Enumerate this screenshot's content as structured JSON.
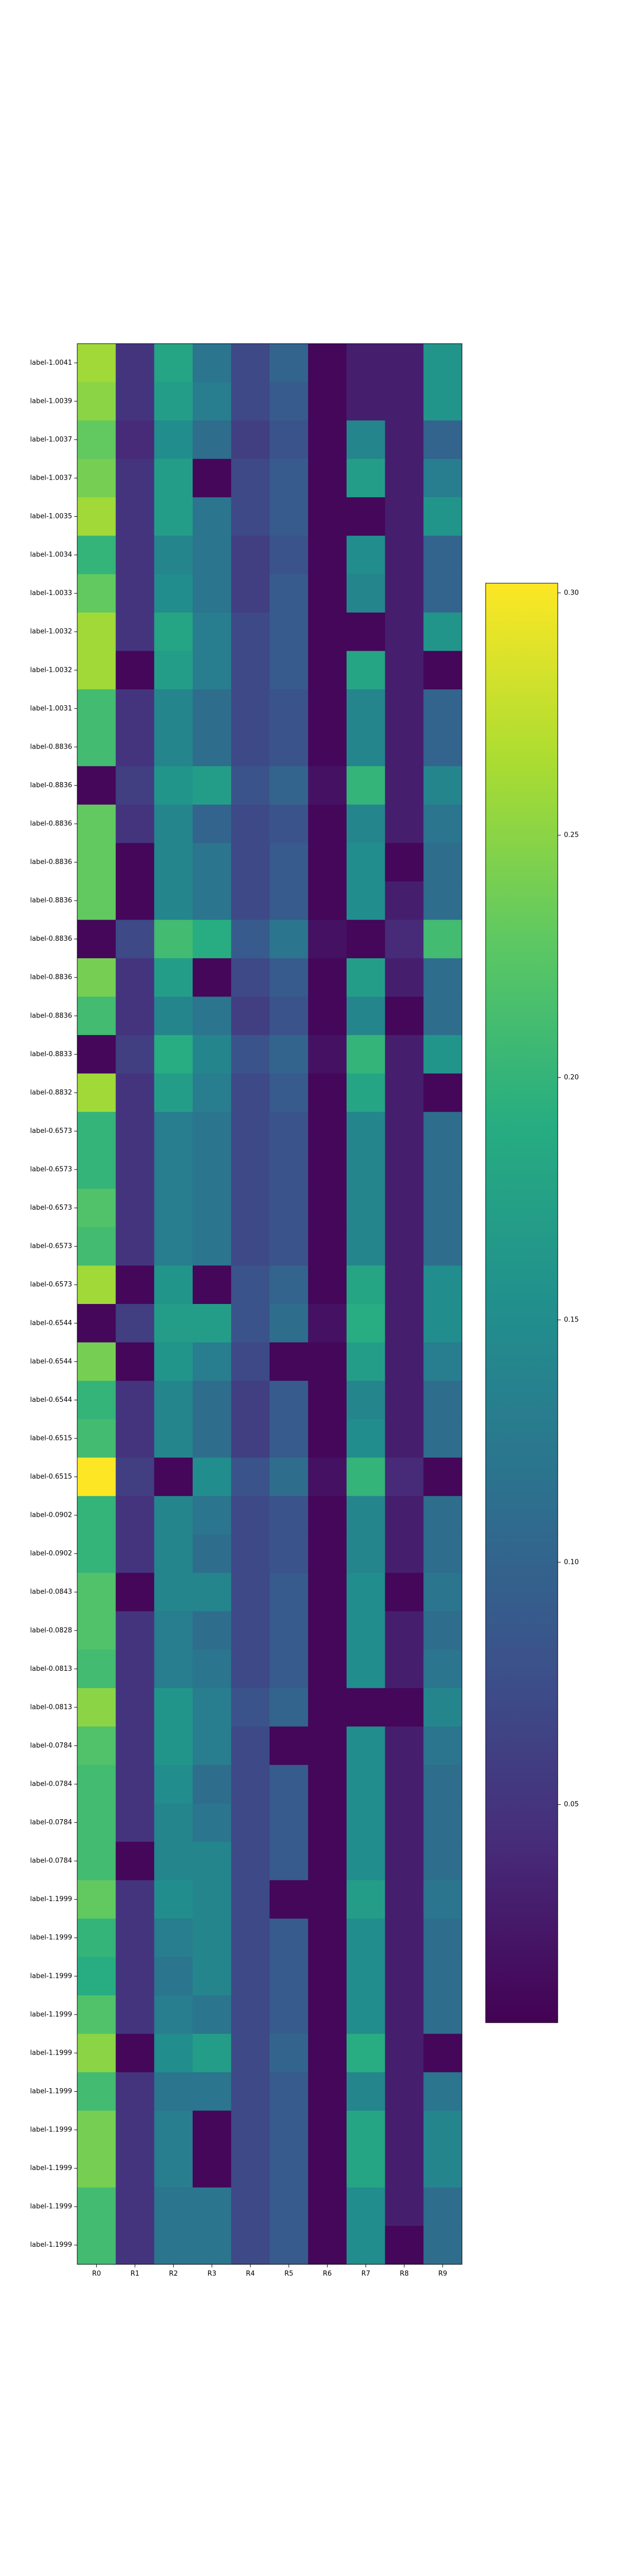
{
  "chart_data": {
    "type": "heatmap",
    "colormap": "viridis",
    "title": "",
    "xlabel": "",
    "ylabel": "",
    "x_categories": [
      "R0",
      "R1",
      "R2",
      "R3",
      "R4",
      "R5",
      "R6",
      "R7",
      "R8",
      "R9"
    ],
    "y_categories": [
      "label-1.0041",
      "label-1.0039",
      "label-1.0037",
      "label-1.0037",
      "label-1.0035",
      "label-1.0034",
      "label-1.0033",
      "label-1.0032",
      "label-1.0032",
      "label-1.0031",
      "label-0.8836",
      "label-0.8836",
      "label-0.8836",
      "label-0.8836",
      "label-0.8836",
      "label-0.8836",
      "label-0.8836",
      "label-0.8836",
      "label-0.8833",
      "label-0.8832",
      "label-0.6573",
      "label-0.6573",
      "label-0.6573",
      "label-0.6573",
      "label-0.6573",
      "label-0.6544",
      "label-0.6544",
      "label-0.6544",
      "label-0.6515",
      "label-0.6515",
      "label-0.0902",
      "label-0.0902",
      "label-0.0843",
      "label-0.0828",
      "label-0.0813",
      "label-0.0813",
      "label-0.0784",
      "label-0.0784",
      "label-0.0784",
      "label-0.0784",
      "label-1.1999",
      "label-1.1999",
      "label-1.1999",
      "label-1.1999",
      "label-1.1999",
      "label-1.1999",
      "label-1.1999",
      "label-1.1999",
      "label-1.1999",
      "label-1.1999"
    ],
    "colorbar": {
      "min": 0.005,
      "max": 0.302,
      "ticks": [
        0.05,
        0.1,
        0.15,
        0.2,
        0.25,
        0.3
      ],
      "tick_labels": [
        "0.05",
        "0.10",
        "0.15",
        "0.20",
        "0.25",
        "0.30"
      ]
    },
    "values": [
      [
        0.26,
        0.05,
        0.18,
        0.12,
        0.07,
        0.1,
        0.01,
        0.03,
        0.03,
        0.16
      ],
      [
        0.25,
        0.05,
        0.17,
        0.13,
        0.07,
        0.09,
        0.01,
        0.03,
        0.03,
        0.16
      ],
      [
        0.23,
        0.04,
        0.15,
        0.11,
        0.06,
        0.08,
        0.01,
        0.14,
        0.03,
        0.1
      ],
      [
        0.24,
        0.05,
        0.17,
        0.01,
        0.07,
        0.09,
        0.01,
        0.17,
        0.03,
        0.13
      ],
      [
        0.26,
        0.05,
        0.17,
        0.12,
        0.07,
        0.09,
        0.01,
        0.01,
        0.03,
        0.16
      ],
      [
        0.2,
        0.05,
        0.14,
        0.12,
        0.06,
        0.08,
        0.01,
        0.15,
        0.03,
        0.1
      ],
      [
        0.23,
        0.05,
        0.15,
        0.12,
        0.06,
        0.09,
        0.01,
        0.14,
        0.03,
        0.1
      ],
      [
        0.26,
        0.05,
        0.18,
        0.13,
        0.07,
        0.09,
        0.01,
        0.01,
        0.03,
        0.16
      ],
      [
        0.26,
        0.01,
        0.17,
        0.13,
        0.07,
        0.09,
        0.01,
        0.18,
        0.03,
        0.01
      ],
      [
        0.21,
        0.05,
        0.14,
        0.11,
        0.07,
        0.08,
        0.01,
        0.14,
        0.03,
        0.1
      ],
      [
        0.21,
        0.05,
        0.14,
        0.11,
        0.07,
        0.08,
        0.01,
        0.14,
        0.03,
        0.1
      ],
      [
        0.01,
        0.06,
        0.16,
        0.17,
        0.08,
        0.1,
        0.02,
        0.2,
        0.03,
        0.14
      ],
      [
        0.23,
        0.05,
        0.14,
        0.1,
        0.07,
        0.08,
        0.01,
        0.14,
        0.03,
        0.12
      ],
      [
        0.23,
        0.01,
        0.14,
        0.12,
        0.07,
        0.09,
        0.01,
        0.15,
        0.01,
        0.11
      ],
      [
        0.23,
        0.01,
        0.14,
        0.12,
        0.07,
        0.09,
        0.01,
        0.15,
        0.03,
        0.11
      ],
      [
        0.01,
        0.07,
        0.21,
        0.19,
        0.09,
        0.12,
        0.02,
        0.01,
        0.04,
        0.21
      ],
      [
        0.24,
        0.05,
        0.17,
        0.01,
        0.07,
        0.09,
        0.01,
        0.17,
        0.03,
        0.11
      ],
      [
        0.21,
        0.05,
        0.14,
        0.12,
        0.06,
        0.08,
        0.01,
        0.14,
        0.01,
        0.11
      ],
      [
        0.01,
        0.06,
        0.19,
        0.14,
        0.08,
        0.1,
        0.02,
        0.2,
        0.03,
        0.16
      ],
      [
        0.26,
        0.05,
        0.17,
        0.13,
        0.07,
        0.09,
        0.01,
        0.18,
        0.03,
        0.01
      ],
      [
        0.2,
        0.05,
        0.13,
        0.12,
        0.07,
        0.08,
        0.01,
        0.14,
        0.03,
        0.11
      ],
      [
        0.2,
        0.05,
        0.13,
        0.12,
        0.07,
        0.08,
        0.01,
        0.14,
        0.03,
        0.11
      ],
      [
        0.22,
        0.05,
        0.13,
        0.12,
        0.07,
        0.08,
        0.01,
        0.14,
        0.03,
        0.11
      ],
      [
        0.21,
        0.05,
        0.13,
        0.12,
        0.07,
        0.08,
        0.01,
        0.14,
        0.03,
        0.11
      ],
      [
        0.26,
        0.01,
        0.16,
        0.01,
        0.08,
        0.1,
        0.01,
        0.18,
        0.03,
        0.15
      ],
      [
        0.01,
        0.06,
        0.17,
        0.17,
        0.08,
        0.11,
        0.02,
        0.19,
        0.03,
        0.15
      ],
      [
        0.24,
        0.01,
        0.16,
        0.13,
        0.07,
        0.01,
        0.01,
        0.17,
        0.03,
        0.13
      ],
      [
        0.2,
        0.05,
        0.14,
        0.11,
        0.06,
        0.09,
        0.01,
        0.14,
        0.03,
        0.11
      ],
      [
        0.21,
        0.05,
        0.14,
        0.11,
        0.06,
        0.09,
        0.01,
        0.15,
        0.03,
        0.11
      ],
      [
        0.302,
        0.06,
        0.01,
        0.15,
        0.08,
        0.11,
        0.02,
        0.2,
        0.04,
        0.01
      ],
      [
        0.2,
        0.05,
        0.14,
        0.12,
        0.07,
        0.08,
        0.01,
        0.14,
        0.03,
        0.11
      ],
      [
        0.2,
        0.05,
        0.14,
        0.11,
        0.07,
        0.08,
        0.01,
        0.14,
        0.03,
        0.11
      ],
      [
        0.22,
        0.01,
        0.14,
        0.14,
        0.07,
        0.09,
        0.01,
        0.15,
        0.01,
        0.12
      ],
      [
        0.22,
        0.05,
        0.13,
        0.11,
        0.07,
        0.09,
        0.01,
        0.15,
        0.03,
        0.11
      ],
      [
        0.21,
        0.05,
        0.13,
        0.12,
        0.07,
        0.09,
        0.01,
        0.15,
        0.03,
        0.12
      ],
      [
        0.25,
        0.05,
        0.16,
        0.13,
        0.08,
        0.1,
        0.01,
        0.01,
        0.01,
        0.14
      ],
      [
        0.22,
        0.05,
        0.16,
        0.13,
        0.07,
        0.01,
        0.01,
        0.15,
        0.03,
        0.12
      ],
      [
        0.21,
        0.05,
        0.15,
        0.11,
        0.07,
        0.09,
        0.01,
        0.15,
        0.03,
        0.11
      ],
      [
        0.21,
        0.05,
        0.14,
        0.12,
        0.07,
        0.09,
        0.01,
        0.15,
        0.03,
        0.11
      ],
      [
        0.21,
        0.01,
        0.14,
        0.14,
        0.07,
        0.09,
        0.01,
        0.15,
        0.03,
        0.11
      ],
      [
        0.23,
        0.05,
        0.15,
        0.14,
        0.07,
        0.01,
        0.01,
        0.17,
        0.03,
        0.12
      ],
      [
        0.2,
        0.05,
        0.13,
        0.14,
        0.07,
        0.09,
        0.01,
        0.15,
        0.03,
        0.11
      ],
      [
        0.19,
        0.05,
        0.12,
        0.14,
        0.07,
        0.09,
        0.01,
        0.15,
        0.03,
        0.11
      ],
      [
        0.22,
        0.05,
        0.13,
        0.12,
        0.07,
        0.09,
        0.01,
        0.15,
        0.03,
        0.11
      ],
      [
        0.25,
        0.01,
        0.15,
        0.17,
        0.07,
        0.1,
        0.01,
        0.19,
        0.03,
        0.01
      ],
      [
        0.21,
        0.05,
        0.12,
        0.12,
        0.07,
        0.09,
        0.01,
        0.14,
        0.03,
        0.12
      ],
      [
        0.24,
        0.05,
        0.13,
        0.01,
        0.07,
        0.09,
        0.01,
        0.18,
        0.03,
        0.14
      ],
      [
        0.24,
        0.05,
        0.13,
        0.01,
        0.07,
        0.09,
        0.01,
        0.18,
        0.03,
        0.14
      ],
      [
        0.21,
        0.05,
        0.12,
        0.12,
        0.07,
        0.09,
        0.01,
        0.15,
        0.03,
        0.11
      ],
      [
        0.21,
        0.05,
        0.12,
        0.12,
        0.07,
        0.09,
        0.01,
        0.15,
        0.01,
        0.11
      ]
    ]
  }
}
